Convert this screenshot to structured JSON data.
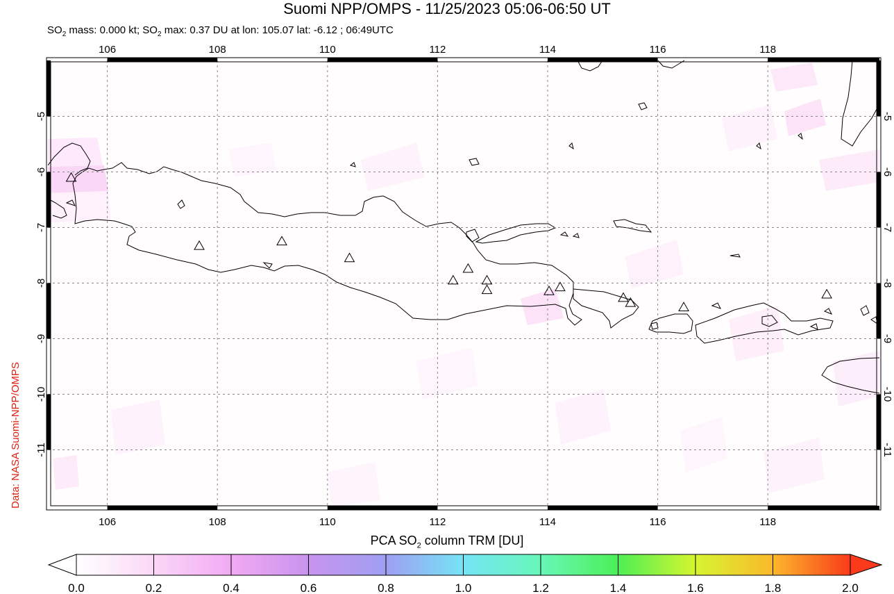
{
  "title": "Suomi NPP/OMPS - 11/25/2023 05:06-06:50 UT",
  "subtitle": {
    "prefix": "SO",
    "sub1": "2",
    "mid": " mass: 0.000 kt; SO",
    "sub2": "2",
    "rest": " max: 0.37 DU at lon: 105.07 lat: -6.12 ; 06:49UTC"
  },
  "credit": "Data: NASA Suomi-NPP/OMPS",
  "colorbar": {
    "title_prefix": "PCA SO",
    "title_sub": "2",
    "title_suffix": " column TRM [DU]",
    "ticks": [
      "0.0",
      "0.2",
      "0.4",
      "0.6",
      "0.8",
      "1.0",
      "1.2",
      "1.4",
      "1.6",
      "1.8",
      "2.0"
    ],
    "colors": [
      "#ffffff",
      "#fbd7f7",
      "#f2aaf3",
      "#c894ee",
      "#9f9ff2",
      "#75e4f5",
      "#67f7b9",
      "#4cf055",
      "#d6f52f",
      "#fbb82c",
      "#fa3a1a"
    ]
  },
  "map": {
    "lon_range": [
      105,
      120
    ],
    "lat_range": [
      -12,
      -4
    ],
    "lon_labels": [
      "106",
      "108",
      "110",
      "112",
      "114",
      "116",
      "118"
    ],
    "lat_labels": [
      "-5",
      "-6",
      "-7",
      "-8",
      "-9",
      "-10",
      "-11"
    ],
    "volcano_marker_color": "#000000",
    "volcanoes": [
      {
        "lon": 105.42,
        "lat": -6.1
      },
      {
        "lon": 107.73,
        "lat": -7.32
      },
      {
        "lon": 109.22,
        "lat": -7.24
      },
      {
        "lon": 110.44,
        "lat": -7.54
      },
      {
        "lon": 112.31,
        "lat": -7.94
      },
      {
        "lon": 112.58,
        "lat": -7.73
      },
      {
        "lon": 112.92,
        "lat": -7.94
      },
      {
        "lon": 112.92,
        "lat": -8.11
      },
      {
        "lon": 114.04,
        "lat": -8.13
      },
      {
        "lon": 114.24,
        "lat": -8.06
      },
      {
        "lon": 115.38,
        "lat": -8.25
      },
      {
        "lon": 115.51,
        "lat": -8.34
      },
      {
        "lon": 116.47,
        "lat": -8.42
      },
      {
        "lon": 119.05,
        "lat": -8.19
      }
    ]
  }
}
